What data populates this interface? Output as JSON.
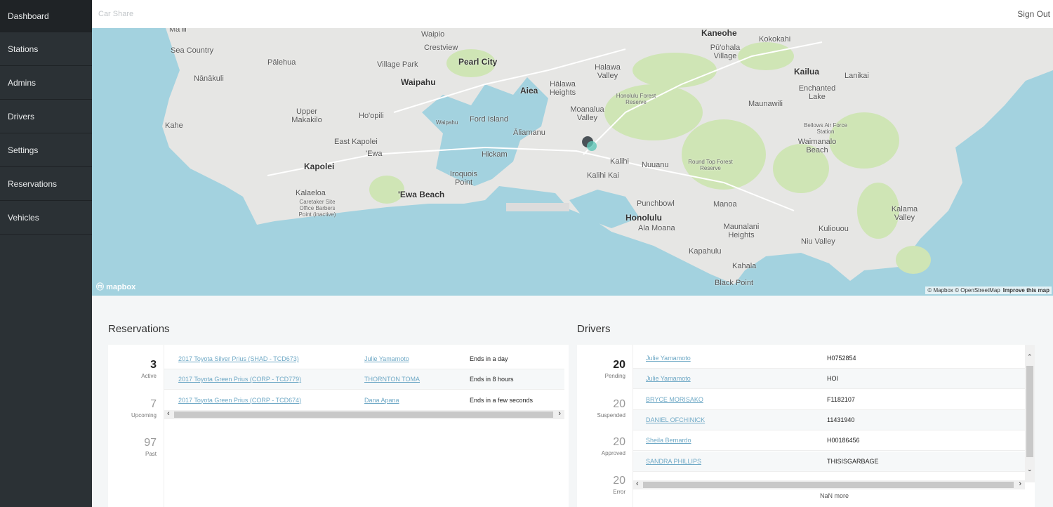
{
  "sidebar": {
    "items": [
      {
        "label": "Dashboard",
        "active": true
      },
      {
        "label": "Stations"
      },
      {
        "label": "Admins"
      },
      {
        "label": "Drivers"
      },
      {
        "label": "Settings"
      },
      {
        "label": "Reservations"
      },
      {
        "label": "Vehicles"
      }
    ]
  },
  "header": {
    "brand": "Car Share",
    "sign_out": "Sign Out"
  },
  "map": {
    "logo": "mapbox",
    "attribution": "© Mapbox © OpenStreetMap",
    "improve": "Improve this map",
    "labels": [
      "Mā'ili",
      "Sea Country",
      "Pālehua",
      "Nānākuli",
      "Kahe",
      "Upper Makakilo",
      "Kapolei",
      "Kalaeloa",
      "Caretaker Site Office Barbers Point (inactive)",
      "Ho'opili",
      "East Kapolei",
      "'Ewa",
      "'Ewa Beach",
      "Iroquois Point",
      "Waipio",
      "Crestview",
      "Village Park",
      "Waipahu",
      "Pearl City",
      "Waipahu",
      "Ford Island",
      "Hickam",
      "Aiea",
      "Hālawa Heights",
      "Halawa Valley",
      "Moanalua Valley",
      "Āliamanu",
      "Honolulu Forest Reserve",
      "Kalihi",
      "Kalihi Kai",
      "Nuuanu",
      "Punchbowl",
      "Honolulu",
      "Ala Moana",
      "Manoa",
      "Round Top Forest Reserve",
      "Maunalani Heights",
      "Kapahulu",
      "Kahala",
      "Black Point",
      "Kaneohe",
      "Kokokahi",
      "Pū'ohala Village",
      "Kailua",
      "Lanikai",
      "Enchanted Lake",
      "Maunawili",
      "Bellows Air Force Station",
      "Waimanalo Beach",
      "Kalama Valley",
      "Kuliouou",
      "Niu Valley"
    ],
    "marker_color": "#4a5257",
    "ocean_color": "#a3d2df",
    "land_color": "#e6e6e4",
    "park_color": "#cfe5b5"
  },
  "reservations": {
    "title": "Reservations",
    "stats": [
      {
        "value": "3",
        "label": "Active"
      },
      {
        "value": "7",
        "label": "Upcoming"
      },
      {
        "value": "97",
        "label": "Past"
      }
    ],
    "rows": [
      {
        "vehicle": "2017 Toyota Silver Prius (SHAD - TCD673)",
        "driver": "Julie Yamamoto",
        "status": "Ends in a day"
      },
      {
        "vehicle": "2017 Toyota Green Prius (CORP - TCD779)",
        "driver": "THORNTON TOMA",
        "status": "Ends in 8 hours"
      },
      {
        "vehicle": "2017 Toyota Green Prius (CORP - TCD674)",
        "driver": "Dana Apana",
        "status": "Ends in a few seconds"
      }
    ]
  },
  "drivers": {
    "title": "Drivers",
    "stats": [
      {
        "value": "20",
        "label": "Pending"
      },
      {
        "value": "20",
        "label": "Suspended"
      },
      {
        "value": "20",
        "label": "Approved"
      },
      {
        "value": "20",
        "label": "Error"
      }
    ],
    "rows": [
      {
        "name": "Julie Yamamoto",
        "license": "H0752854"
      },
      {
        "name": "Julie Yamamoto",
        "license": "HOI"
      },
      {
        "name": "BRYCE MORISAKO",
        "license": "F1182107"
      },
      {
        "name": "DANIEL OFCHINICK",
        "license": "11431940"
      },
      {
        "name": "Sheila Bernardo",
        "license": "H00186456"
      },
      {
        "name": "SANDRA PHILLIPS",
        "license": "THISISGARBAGE"
      }
    ],
    "more": "NaN more"
  }
}
